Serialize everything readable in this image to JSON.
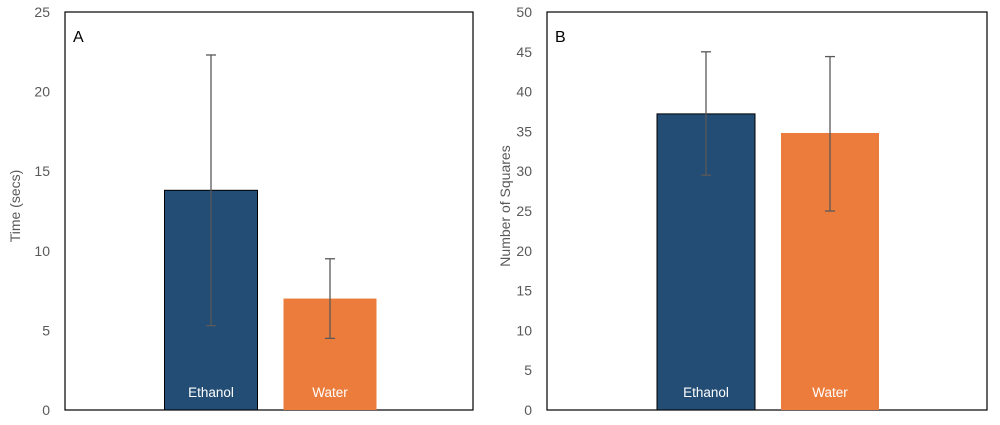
{
  "chart_data": [
    {
      "type": "bar",
      "panel_label": "A",
      "categories": [
        "Ethanol",
        "Water"
      ],
      "values": [
        13.8,
        7.0
      ],
      "error_bars": [
        [
          5.3,
          22.3
        ],
        [
          4.5,
          9.5
        ]
      ],
      "colors": [
        "#234d75",
        "#ec7c3b"
      ],
      "ylabel": "Time (secs)",
      "ylim": [
        0,
        25
      ],
      "yticks": [
        "0",
        "5",
        "10",
        "15",
        "20",
        "25"
      ],
      "grid": false,
      "legend": "none"
    },
    {
      "type": "bar",
      "panel_label": "B",
      "categories": [
        "Ethanol",
        "Water"
      ],
      "values": [
        37.2,
        34.8
      ],
      "error_bars": [
        [
          29.5,
          45.0
        ],
        [
          25.0,
          44.4
        ]
      ],
      "colors": [
        "#234d75",
        "#ec7c3b"
      ],
      "ylabel": "Number of Squares",
      "ylim": [
        0,
        50
      ],
      "yticks": [
        "0",
        "5",
        "10",
        "15",
        "20",
        "25",
        "30",
        "35",
        "40",
        "45",
        "50"
      ],
      "grid": false,
      "legend": "none"
    }
  ]
}
